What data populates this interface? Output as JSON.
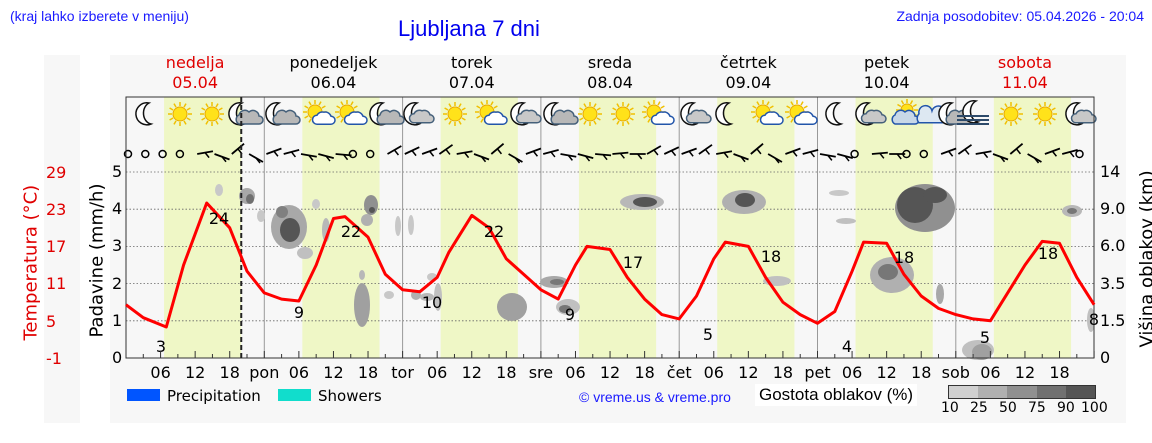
{
  "header": {
    "menu_hint": "(kraj lahko izberete v meniju)",
    "title": "Ljubljana 7 dni",
    "last_update": "Zadnja posodobitev: 05.04.2026 - 20:04"
  },
  "days": [
    {
      "name": "nedelja",
      "date": "05.04",
      "weekend": true,
      "short": ""
    },
    {
      "name": "ponedeljek",
      "date": "06.04",
      "weekend": false,
      "short": "pon"
    },
    {
      "name": "torek",
      "date": "07.04",
      "weekend": false,
      "short": "tor"
    },
    {
      "name": "sreda",
      "date": "08.04",
      "weekend": false,
      "short": "sre"
    },
    {
      "name": "četrtek",
      "date": "09.04",
      "weekend": false,
      "short": "čet"
    },
    {
      "name": "petek",
      "date": "10.04",
      "weekend": false,
      "short": "pet"
    },
    {
      "name": "sobota",
      "date": "11.04",
      "weekend": true,
      "short": "sob"
    }
  ],
  "hour_ticks": [
    "06",
    "12",
    "18"
  ],
  "axes": {
    "temperature_title": "Temperatura (°C)",
    "temperature_ticks": [
      "29",
      "23",
      "17",
      "11",
      "5",
      "-1"
    ],
    "precip_title": "Padavine (mm/h)",
    "precip_ticks": [
      "5",
      "4",
      "3",
      "2",
      "1",
      "0"
    ],
    "cloud_title": "Višina oblakov (km)",
    "cloud_ticks": [
      "14",
      "9.0",
      "6.0",
      "3.5",
      "1.5",
      "0"
    ]
  },
  "legend": {
    "precipitation": "Precipitation",
    "showers": "Showers",
    "precip_color": "#0055ff",
    "showers_color": "#11ddcc",
    "copyright": "© vreme.us & vreme.pro",
    "cloud_density_title": "Gostota oblakov (%)",
    "cloud_density_ticks": [
      "10",
      "25",
      "50",
      "75",
      "90",
      "100"
    ],
    "cloud_density_colors": [
      "#d0d0d0",
      "#b0b0b0",
      "#909090",
      "#707070",
      "#555555"
    ]
  },
  "icons": [
    "moon-clear-icon",
    "sun-icon",
    "sun-icon",
    "moon-cloudy-icon",
    "moon-cloudy-icon",
    "sun-cloud-icon",
    "sun-cloud-icon",
    "moon-cloudy-icon",
    "moon-partly-cloudy-icon",
    "sun-icon",
    "sun-cloud-icon",
    "moon-partly-cloudy-icon",
    "moon-cloudy-icon",
    "sun-icon",
    "sun-icon",
    "sun-cloud-icon",
    "moon-partly-cloudy-icon",
    "moon-clear-icon",
    "sun-cloud-icon",
    "sun-cloud-icon",
    "moon-clear-icon",
    "moon-partly-cloudy-icon",
    "cloud-sun-icon",
    "cloudy-icon",
    "moon-cloudy-icon",
    "moon-fog-icon",
    "sun-icon",
    "sun-icon",
    "moon-partly-cloudy-icon"
  ],
  "colors": {
    "temperature_line": "#ff0000",
    "daylight_band": "#eff7c6",
    "plot_bg": "#f7f7f7",
    "weekend_text": "#e00000",
    "link_blue": "#1a1aff"
  },
  "chart_data": {
    "type": "line",
    "title": "Ljubljana 7 dni",
    "xlabel": "",
    "ylabel": "Padavine (mm/h)",
    "ylabel_left_secondary": "Temperatura (°C)",
    "ylabel_right": "Višina oblakov (km)",
    "ylim": [
      0,
      5
    ],
    "temperature_ylim": [
      -1,
      29
    ],
    "grid": true,
    "x_hours_from_start": [
      0,
      6,
      14,
      20,
      24,
      30,
      39,
      44,
      48,
      53,
      62,
      67,
      72,
      79,
      86,
      91,
      96,
      103,
      110,
      116,
      120,
      127,
      134,
      140,
      144,
      151,
      158,
      163,
      168
    ],
    "series": [
      {
        "name": "Temperatura (°C)",
        "x_hours": [
          0,
          3,
          7,
          10,
          14,
          18,
          21,
          24,
          27,
          30,
          33,
          36,
          38,
          42,
          45,
          48,
          51,
          54,
          56,
          60,
          63,
          66,
          69,
          72,
          75,
          78,
          80,
          84,
          87,
          90,
          93,
          96,
          99,
          102,
          104,
          108,
          111,
          114,
          117,
          120,
          123,
          126,
          128,
          132,
          135,
          138,
          141,
          144,
          147,
          150,
          152,
          156,
          159,
          162,
          165,
          168
        ],
        "values": [
          7.6,
          5.5,
          4.0,
          14.0,
          24.0,
          20.0,
          13.0,
          9.5,
          8.5,
          8.2,
          14.0,
          21.5,
          21.8,
          18.5,
          12.5,
          10.0,
          9.7,
          12.0,
          16.0,
          22.0,
          20.0,
          15.0,
          12.5,
          10.0,
          8.5,
          14.0,
          17.0,
          16.5,
          12.0,
          8.5,
          6.0,
          5.3,
          9.0,
          15.0,
          17.7,
          17.0,
          12.0,
          8.0,
          6.0,
          4.6,
          6.5,
          13.0,
          17.7,
          17.5,
          12.5,
          9.0,
          7.0,
          6.0,
          5.3,
          5.0,
          8.0,
          14.0,
          17.8,
          17.5,
          12.0,
          7.6
        ]
      }
    ],
    "annotations": [
      {
        "label": "3",
        "type": "min",
        "day": "nedelja"
      },
      {
        "label": "24",
        "type": "max",
        "day": "nedelja"
      },
      {
        "label": "9",
        "type": "min",
        "day": "ponedeljek"
      },
      {
        "label": "22",
        "type": "max",
        "day": "ponedeljek"
      },
      {
        "label": "10",
        "type": "min",
        "day": "torek"
      },
      {
        "label": "22",
        "type": "max",
        "day": "torek"
      },
      {
        "label": "9",
        "type": "min",
        "day": "sreda"
      },
      {
        "label": "17",
        "type": "max",
        "day": "sreda"
      },
      {
        "label": "5",
        "type": "min",
        "day": "četrtek"
      },
      {
        "label": "18",
        "type": "max",
        "day": "četrtek"
      },
      {
        "label": "4",
        "type": "min",
        "day": "petek"
      },
      {
        "label": "18",
        "type": "max",
        "day": "petek"
      },
      {
        "label": "5",
        "type": "min",
        "day": "sobota"
      },
      {
        "label": "18",
        "type": "max",
        "day": "sobota"
      },
      {
        "label": "8",
        "type": "end",
        "day": "sobota"
      }
    ],
    "precipitation": "none shown",
    "x_tick_labels": [
      "06",
      "12",
      "18",
      "pon",
      "06",
      "12",
      "18",
      "tor",
      "06",
      "12",
      "18",
      "sre",
      "06",
      "12",
      "18",
      "čet",
      "06",
      "12",
      "18",
      "pet",
      "06",
      "12",
      "18",
      "sob",
      "06",
      "12",
      "18"
    ],
    "current_time_marker_hour": 20
  }
}
